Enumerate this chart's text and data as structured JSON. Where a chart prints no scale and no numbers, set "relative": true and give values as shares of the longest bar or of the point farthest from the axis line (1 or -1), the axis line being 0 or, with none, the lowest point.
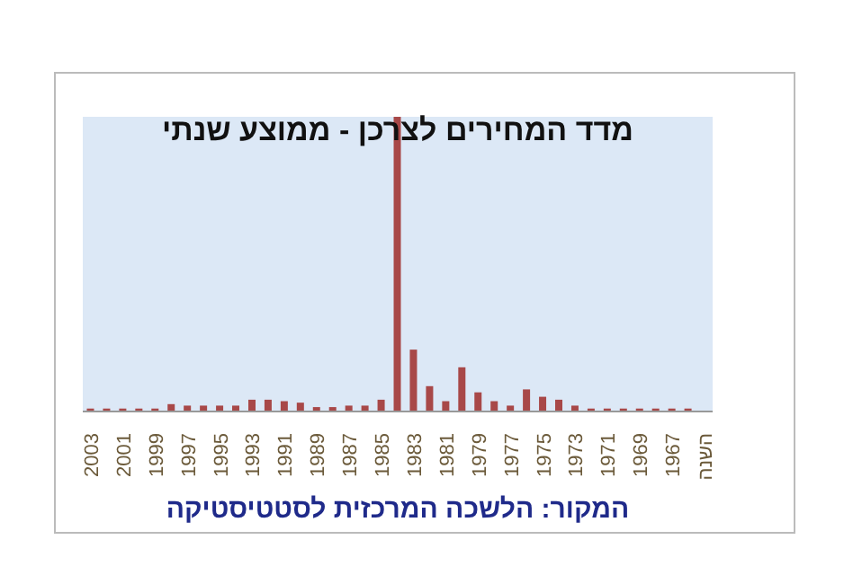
{
  "chart_data": {
    "type": "bar",
    "title": "מדד המחירים לצרכן - ממוצע שנתי",
    "annotations": [
      "המקור: הלשכה המרכזית לסטטיסטיקה"
    ],
    "categories": [
      "2003",
      null,
      "2001",
      null,
      "1999",
      null,
      "1997",
      null,
      "1995",
      null,
      "1993",
      null,
      "1991",
      null,
      "1989",
      null,
      "1987",
      null,
      "1985",
      null,
      "1983",
      null,
      "1981",
      null,
      "1979",
      null,
      "1977",
      null,
      "1975",
      null,
      "1973",
      null,
      "1971",
      null,
      "1969",
      null,
      "1967",
      null,
      "השנה"
    ],
    "values": [
      0.01,
      0.01,
      0.01,
      0.01,
      0.01,
      0.025,
      0.02,
      0.02,
      0.02,
      0.02,
      0.04,
      0.04,
      0.035,
      0.03,
      0.015,
      0.015,
      0.02,
      0.02,
      0.04,
      1,
      0.21,
      0.086,
      0.035,
      0.15,
      0.065,
      0.035,
      0.02,
      0.075,
      0.05,
      0.04,
      0.02,
      0.01,
      0.01,
      0.01,
      0.01,
      0.01,
      0.01,
      0.01,
      null
    ],
    "color": "#a84848",
    "relative": true
  }
}
